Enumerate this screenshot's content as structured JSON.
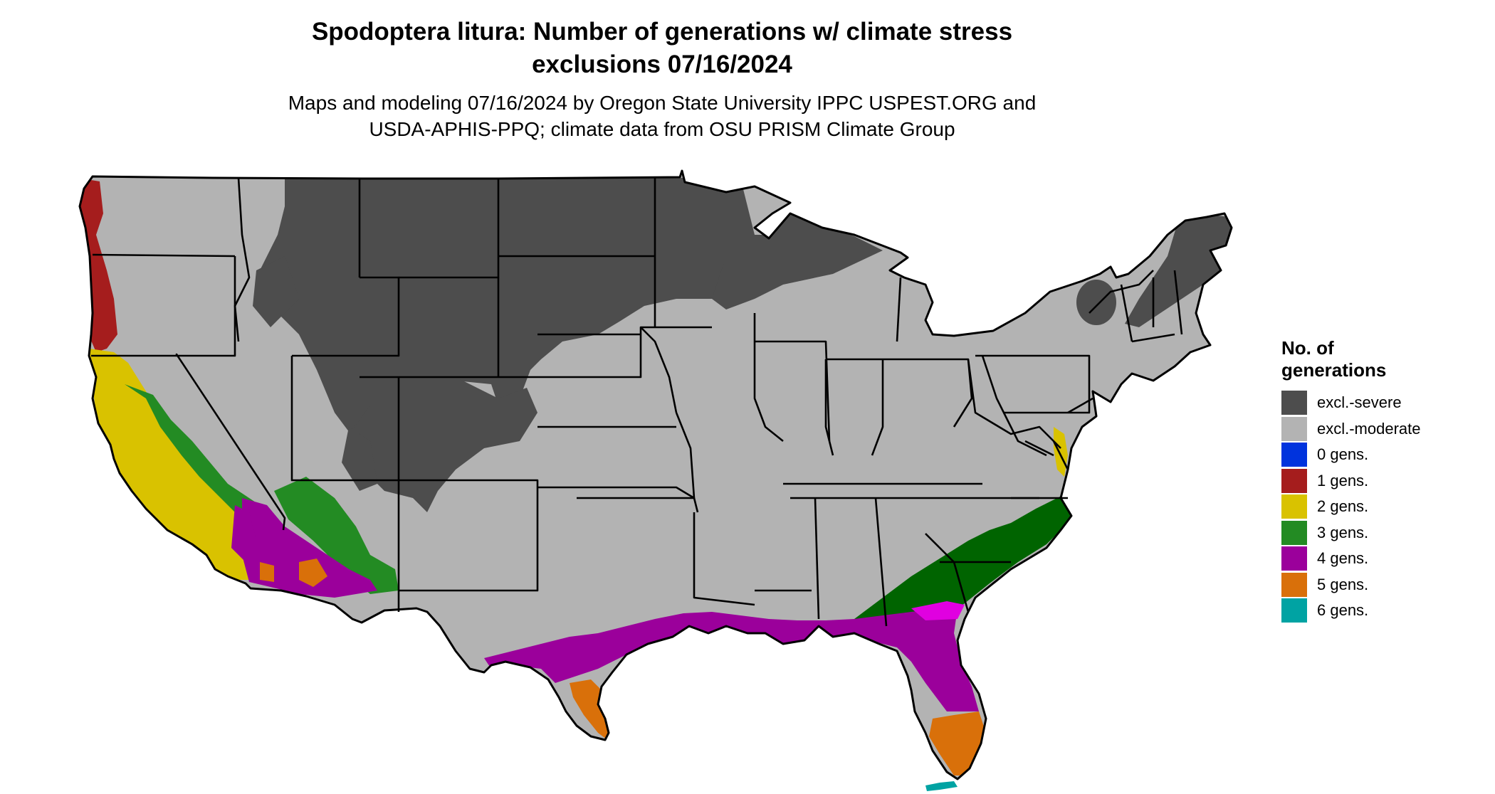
{
  "title": {
    "line1": "Spodoptera litura: Number of generations w/ climate stress",
    "line2": "exclusions 07/16/2024"
  },
  "subtitle": {
    "line1": "Maps and modeling 07/16/2024 by Oregon State University IPPC USPEST.ORG and",
    "line2": "USDA-APHIS-PPQ; climate data from OSU PRISM Climate Group"
  },
  "legend": {
    "title_line1": "No. of",
    "title_line2": "generations",
    "items": [
      {
        "label": "excl.-severe",
        "color": "#4d4d4d"
      },
      {
        "label": "excl.-moderate",
        "color": "#b3b3b3"
      },
      {
        "label": "0 gens.",
        "color": "#0033dd"
      },
      {
        "label": "1 gens.",
        "color": "#a51d1d"
      },
      {
        "label": "2 gens.",
        "color": "#d9c200"
      },
      {
        "label": "3 gens.",
        "color": "#238b23"
      },
      {
        "label": "4 gens.",
        "color": "#9b009b"
      },
      {
        "label": "5 gens.",
        "color": "#d9700a"
      },
      {
        "label": "6 gens.",
        "color": "#00a3a3"
      }
    ]
  },
  "map": {
    "region": "Contiguous United States",
    "colors": {
      "severe": "#4d4d4d",
      "moderate": "#b3b3b3",
      "gen1": "#a51d1d",
      "gen2": "#d9c200",
      "gen3": "#238b23",
      "gen3_dark": "#006400",
      "gen4": "#9b009b",
      "gen4_bright": "#e000e0",
      "gen5": "#d9700a",
      "gen6": "#00a3a3",
      "border": "#000000"
    }
  }
}
